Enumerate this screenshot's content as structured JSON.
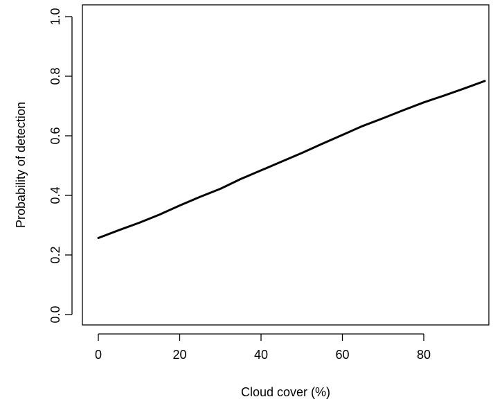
{
  "chart_data": {
    "type": "line",
    "title": "",
    "xlabel": "Cloud cover (%)",
    "ylabel": "Probability of detection",
    "xlim": [
      0,
      95
    ],
    "ylim": [
      0,
      1
    ],
    "x_ticks": [
      0,
      20,
      40,
      60,
      80
    ],
    "x_tick_labels": [
      "0",
      "20",
      "40",
      "60",
      "80"
    ],
    "y_ticks": [
      0,
      0.2,
      0.4,
      0.6,
      0.8,
      1.0
    ],
    "y_tick_labels": [
      "0.0",
      "0.2",
      "0.4",
      "0.6",
      "0.8",
      "1.0"
    ],
    "grid": false,
    "legend": "none",
    "series": [
      {
        "color": "#000000",
        "x": [
          0,
          5,
          10,
          15,
          20,
          25,
          30,
          35,
          40,
          45,
          50,
          55,
          60,
          65,
          70,
          75,
          80,
          85,
          90,
          95
        ],
        "y": [
          0.257,
          0.283,
          0.308,
          0.335,
          0.366,
          0.395,
          0.422,
          0.455,
          0.484,
          0.513,
          0.542,
          0.573,
          0.603,
          0.633,
          0.659,
          0.686,
          0.712,
          0.735,
          0.759,
          0.784
        ]
      }
    ]
  }
}
